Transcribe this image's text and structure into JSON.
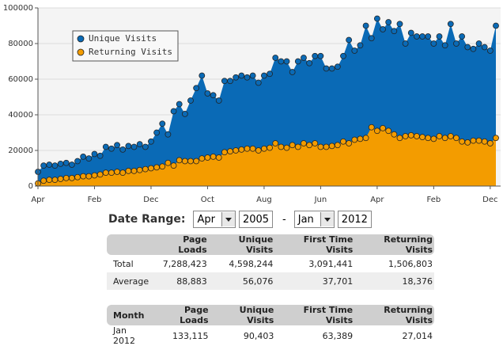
{
  "chart_data": {
    "type": "area",
    "categories": [
      "Apr",
      null,
      null,
      null,
      null,
      null,
      null,
      null,
      null,
      null,
      "Feb",
      null,
      null,
      null,
      null,
      null,
      null,
      null,
      null,
      null,
      "Dec",
      null,
      null,
      null,
      null,
      null,
      null,
      null,
      null,
      null,
      "Oct",
      null,
      null,
      null,
      null,
      null,
      null,
      null,
      null,
      null,
      "Aug",
      null,
      null,
      null,
      null,
      null,
      null,
      null,
      null,
      null,
      "Jun",
      null,
      null,
      null,
      null,
      null,
      null,
      null,
      null,
      null,
      "Apr",
      null,
      null,
      null,
      null,
      null,
      null,
      null,
      null,
      null,
      "Feb",
      null,
      null,
      null,
      null,
      null,
      null,
      null,
      null,
      null,
      "Dec",
      null
    ],
    "series": [
      {
        "name": "Unique Visits",
        "color": "#0a6ab6",
        "values": [
          8000,
          11500,
          12000,
          11500,
          12500,
          13000,
          12000,
          14000,
          16500,
          15500,
          18000,
          17000,
          22000,
          21000,
          23000,
          20500,
          22500,
          22000,
          23500,
          22000,
          25000,
          30000,
          35000,
          29000,
          42000,
          46000,
          40500,
          48000,
          55000,
          62000,
          52000,
          51000,
          48000,
          59000,
          59000,
          61000,
          62000,
          61000,
          62000,
          58000,
          62000,
          63000,
          72000,
          70000,
          70000,
          64000,
          70000,
          72000,
          69000,
          73000,
          73000,
          66000,
          66000,
          67000,
          73000,
          82000,
          76000,
          79000,
          90000,
          83000,
          94000,
          88000,
          92000,
          87000,
          91000,
          80000,
          86000,
          84000,
          84000,
          84000,
          80000,
          84000,
          79000,
          91000,
          80000,
          84000,
          78000,
          77000,
          80000,
          78000,
          76000,
          90000
        ]
      },
      {
        "name": "Returning Visits",
        "color": "#f39c00",
        "values": [
          1500,
          3000,
          3500,
          3500,
          4000,
          4500,
          4500,
          5000,
          5500,
          5500,
          6000,
          6500,
          7500,
          7500,
          8000,
          7500,
          8500,
          8500,
          9000,
          9500,
          10000,
          10500,
          11000,
          13000,
          11500,
          14500,
          14000,
          14000,
          14000,
          15500,
          16000,
          16500,
          16000,
          19000,
          19500,
          20000,
          20500,
          21000,
          21000,
          20000,
          21000,
          21500,
          24000,
          22000,
          21500,
          23000,
          22000,
          24000,
          23000,
          24000,
          22000,
          22000,
          22500,
          23000,
          25000,
          24000,
          26000,
          26500,
          27000,
          33000,
          31000,
          32500,
          31000,
          29000,
          27000,
          28000,
          28500,
          28000,
          27500,
          27000,
          26500,
          28000,
          27000,
          28000,
          27000,
          25000,
          24500,
          25500,
          25500,
          25000,
          24000,
          27000
        ]
      }
    ],
    "ylim": [
      0,
      100000
    ],
    "yticks": [
      0,
      20000,
      40000,
      60000,
      80000,
      100000
    ],
    "grid": true,
    "legend": "upper left"
  },
  "date_range": {
    "label": "Date Range:",
    "from_month": "Apr",
    "from_year": "2005",
    "separator": "-",
    "to_month": "Jan",
    "to_year": "2012"
  },
  "summary_table": {
    "columns": [
      "Page Loads",
      "Unique Visits",
      "First Time Visits",
      "Returning Visits"
    ],
    "rows": [
      {
        "label": "Total",
        "cells": [
          "7,288,423",
          "4,598,244",
          "3,091,441",
          "1,506,803"
        ]
      },
      {
        "label": "Average",
        "cells": [
          "88,883",
          "56,076",
          "37,701",
          "18,376"
        ]
      }
    ]
  },
  "month_table": {
    "columns": [
      "Month",
      "Page Loads",
      "Unique Visits",
      "First Time Visits",
      "Returning Visits"
    ],
    "rows": [
      [
        "Jan 2012",
        "133,115",
        "90,403",
        "63,389",
        "27,014"
      ]
    ]
  }
}
